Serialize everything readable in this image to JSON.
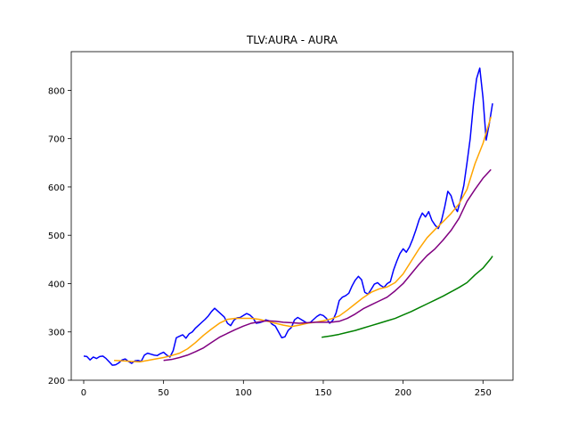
{
  "chart_data": {
    "type": "line",
    "title": "TLV:AURA - AURA",
    "xlabel": "",
    "ylabel": "",
    "xlim": [
      -7.8,
      268.8
    ],
    "ylim": [
      200,
      880
    ],
    "xticks": [
      0,
      50,
      100,
      150,
      200,
      250
    ],
    "yticks": [
      200,
      300,
      400,
      500,
      600,
      700,
      800
    ],
    "grid": false,
    "legend": "none",
    "series": [
      {
        "color": "#0000ff",
        "points": [
          [
            0,
            250
          ],
          [
            2,
            249
          ],
          [
            4,
            242
          ],
          [
            6,
            248
          ],
          [
            8,
            245
          ],
          [
            10,
            249
          ],
          [
            12,
            250
          ],
          [
            14,
            245
          ],
          [
            16,
            238
          ],
          [
            18,
            231
          ],
          [
            20,
            232
          ],
          [
            22,
            236
          ],
          [
            24,
            242
          ],
          [
            26,
            244
          ],
          [
            28,
            239
          ],
          [
            30,
            235
          ],
          [
            32,
            240
          ],
          [
            34,
            241
          ],
          [
            36,
            239
          ],
          [
            38,
            252
          ],
          [
            40,
            256
          ],
          [
            42,
            254
          ],
          [
            44,
            252
          ],
          [
            46,
            251
          ],
          [
            48,
            255
          ],
          [
            50,
            258
          ],
          [
            52,
            252
          ],
          [
            54,
            248
          ],
          [
            56,
            261
          ],
          [
            58,
            288
          ],
          [
            60,
            291
          ],
          [
            62,
            294
          ],
          [
            64,
            287
          ],
          [
            66,
            296
          ],
          [
            68,
            300
          ],
          [
            70,
            308
          ],
          [
            72,
            314
          ],
          [
            74,
            320
          ],
          [
            76,
            326
          ],
          [
            78,
            333
          ],
          [
            80,
            342
          ],
          [
            82,
            349
          ],
          [
            84,
            343
          ],
          [
            86,
            337
          ],
          [
            88,
            331
          ],
          [
            90,
            318
          ],
          [
            92,
            313
          ],
          [
            94,
            324
          ],
          [
            96,
            329
          ],
          [
            98,
            330
          ],
          [
            100,
            334
          ],
          [
            102,
            338
          ],
          [
            104,
            335
          ],
          [
            106,
            329
          ],
          [
            108,
            318
          ],
          [
            110,
            319
          ],
          [
            112,
            321
          ],
          [
            114,
            325
          ],
          [
            116,
            323
          ],
          [
            118,
            316
          ],
          [
            120,
            312
          ],
          [
            122,
            300
          ],
          [
            124,
            288
          ],
          [
            126,
            290
          ],
          [
            128,
            303
          ],
          [
            130,
            309
          ],
          [
            132,
            325
          ],
          [
            134,
            330
          ],
          [
            136,
            326
          ],
          [
            138,
            322
          ],
          [
            140,
            318
          ],
          [
            142,
            320
          ],
          [
            144,
            326
          ],
          [
            146,
            332
          ],
          [
            148,
            336
          ],
          [
            150,
            334
          ],
          [
            152,
            328
          ],
          [
            154,
            318
          ],
          [
            156,
            324
          ],
          [
            158,
            339
          ],
          [
            160,
            365
          ],
          [
            162,
            372
          ],
          [
            164,
            375
          ],
          [
            166,
            380
          ],
          [
            168,
            395
          ],
          [
            170,
            407
          ],
          [
            172,
            415
          ],
          [
            174,
            408
          ],
          [
            176,
            382
          ],
          [
            178,
            378
          ],
          [
            180,
            388
          ],
          [
            182,
            399
          ],
          [
            184,
            402
          ],
          [
            186,
            396
          ],
          [
            188,
            392
          ],
          [
            190,
            400
          ],
          [
            192,
            404
          ],
          [
            194,
            428
          ],
          [
            196,
            446
          ],
          [
            198,
            462
          ],
          [
            200,
            472
          ],
          [
            202,
            465
          ],
          [
            204,
            476
          ],
          [
            206,
            492
          ],
          [
            208,
            511
          ],
          [
            210,
            532
          ],
          [
            212,
            546
          ],
          [
            214,
            538
          ],
          [
            216,
            549
          ],
          [
            218,
            531
          ],
          [
            220,
            521
          ],
          [
            222,
            514
          ],
          [
            224,
            530
          ],
          [
            226,
            558
          ],
          [
            228,
            591
          ],
          [
            230,
            582
          ],
          [
            232,
            560
          ],
          [
            234,
            549
          ],
          [
            236,
            574
          ],
          [
            238,
            603
          ],
          [
            240,
            650
          ],
          [
            242,
            700
          ],
          [
            244,
            770
          ],
          [
            246,
            824
          ],
          [
            248,
            846
          ],
          [
            250,
            785
          ],
          [
            252,
            697
          ],
          [
            254,
            732
          ],
          [
            256,
            773
          ]
        ]
      },
      {
        "color": "#ffa500",
        "points": [
          [
            19,
            241
          ],
          [
            25,
            240
          ],
          [
            30,
            239
          ],
          [
            35,
            238
          ],
          [
            40,
            241
          ],
          [
            45,
            244
          ],
          [
            50,
            247
          ],
          [
            55,
            251
          ],
          [
            60,
            256
          ],
          [
            65,
            265
          ],
          [
            70,
            278
          ],
          [
            75,
            293
          ],
          [
            80,
            306
          ],
          [
            85,
            318
          ],
          [
            90,
            326
          ],
          [
            95,
            328
          ],
          [
            100,
            328
          ],
          [
            105,
            328
          ],
          [
            110,
            326
          ],
          [
            115,
            322
          ],
          [
            120,
            318
          ],
          [
            125,
            314
          ],
          [
            130,
            311
          ],
          [
            135,
            314
          ],
          [
            140,
            318
          ],
          [
            145,
            320
          ],
          [
            150,
            323
          ],
          [
            155,
            327
          ],
          [
            160,
            333
          ],
          [
            165,
            345
          ],
          [
            170,
            358
          ],
          [
            175,
            371
          ],
          [
            180,
            382
          ],
          [
            185,
            389
          ],
          [
            190,
            393
          ],
          [
            195,
            402
          ],
          [
            200,
            420
          ],
          [
            205,
            446
          ],
          [
            210,
            472
          ],
          [
            215,
            495
          ],
          [
            220,
            512
          ],
          [
            225,
            528
          ],
          [
            230,
            545
          ],
          [
            235,
            565
          ],
          [
            240,
            595
          ],
          [
            245,
            648
          ],
          [
            250,
            690
          ],
          [
            255,
            745
          ]
        ]
      },
      {
        "color": "#800080",
        "points": [
          [
            50,
            241
          ],
          [
            55,
            243
          ],
          [
            60,
            247
          ],
          [
            65,
            252
          ],
          [
            70,
            259
          ],
          [
            75,
            267
          ],
          [
            80,
            278
          ],
          [
            85,
            289
          ],
          [
            90,
            297
          ],
          [
            95,
            305
          ],
          [
            100,
            312
          ],
          [
            105,
            318
          ],
          [
            110,
            321
          ],
          [
            115,
            323
          ],
          [
            120,
            322
          ],
          [
            125,
            320
          ],
          [
            130,
            319
          ],
          [
            135,
            318
          ],
          [
            140,
            319
          ],
          [
            145,
            320
          ],
          [
            150,
            320
          ],
          [
            155,
            320
          ],
          [
            160,
            322
          ],
          [
            165,
            328
          ],
          [
            170,
            337
          ],
          [
            175,
            348
          ],
          [
            180,
            356
          ],
          [
            185,
            364
          ],
          [
            190,
            372
          ],
          [
            195,
            385
          ],
          [
            200,
            400
          ],
          [
            205,
            420
          ],
          [
            210,
            440
          ],
          [
            215,
            458
          ],
          [
            220,
            472
          ],
          [
            225,
            490
          ],
          [
            230,
            510
          ],
          [
            235,
            535
          ],
          [
            240,
            570
          ],
          [
            245,
            595
          ],
          [
            250,
            618
          ],
          [
            255,
            636
          ]
        ]
      },
      {
        "color": "#008000",
        "points": [
          [
            149,
            289
          ],
          [
            155,
            292
          ],
          [
            160,
            295
          ],
          [
            165,
            299
          ],
          [
            170,
            303
          ],
          [
            175,
            308
          ],
          [
            180,
            313
          ],
          [
            185,
            318
          ],
          [
            190,
            323
          ],
          [
            195,
            328
          ],
          [
            200,
            335
          ],
          [
            205,
            342
          ],
          [
            210,
            350
          ],
          [
            215,
            358
          ],
          [
            220,
            366
          ],
          [
            225,
            374
          ],
          [
            230,
            383
          ],
          [
            235,
            392
          ],
          [
            240,
            402
          ],
          [
            245,
            418
          ],
          [
            250,
            432
          ],
          [
            255,
            452
          ],
          [
            256,
            457
          ]
        ]
      }
    ]
  }
}
